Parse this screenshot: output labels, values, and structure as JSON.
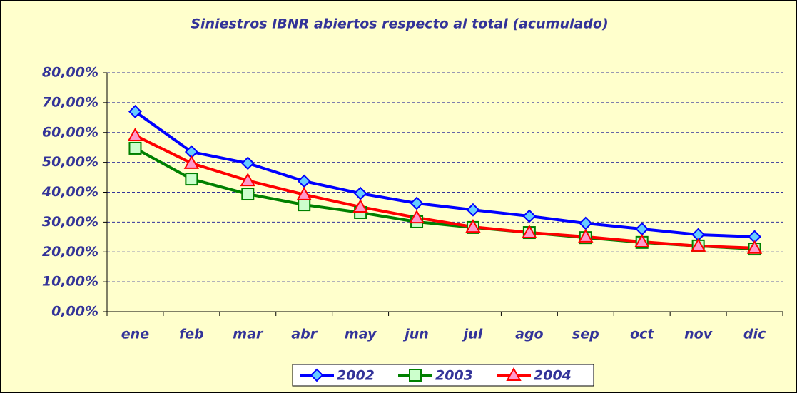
{
  "chart_data": {
    "type": "line",
    "title": "Siniestros IBNR abiertos respecto al total (acumulado)",
    "categories": [
      "ene",
      "feb",
      "mar",
      "abr",
      "may",
      "jun",
      "jul",
      "ago",
      "sep",
      "oct",
      "nov",
      "dic"
    ],
    "series": [
      {
        "name": "2002",
        "color": "#0000ff",
        "values": [
          67,
          53.5,
          49.7,
          43.7,
          39.6,
          36.3,
          34.1,
          32,
          29.6,
          27.7,
          25.8,
          25.1
        ]
      },
      {
        "name": "2003",
        "color": "#008000",
        "values": [
          54.7,
          44.4,
          39.4,
          35.8,
          33.2,
          30.1,
          28.2,
          26.5,
          24.8,
          23.2,
          22,
          21
        ]
      },
      {
        "name": "2004",
        "color": "#ff0000",
        "values": [
          59,
          49.7,
          43.9,
          39.2,
          35.1,
          31.5,
          28.4,
          26.5,
          25.1,
          23.4,
          22,
          21.3
        ]
      }
    ],
    "ylim": [
      0,
      80
    ],
    "yticks": [
      {
        "value": 0,
        "label": "0,00%"
      },
      {
        "value": 10,
        "label": "10,00%"
      },
      {
        "value": 20,
        "label": "20,00%"
      },
      {
        "value": 30,
        "label": "30,00%"
      },
      {
        "value": 40,
        "label": "40,00%"
      },
      {
        "value": 50,
        "label": "50,00%"
      },
      {
        "value": 60,
        "label": "60,00%"
      },
      {
        "value": 70,
        "label": "70,00%"
      },
      {
        "value": 80,
        "label": "80,00%"
      }
    ],
    "grid": true,
    "legend": "bottom"
  }
}
